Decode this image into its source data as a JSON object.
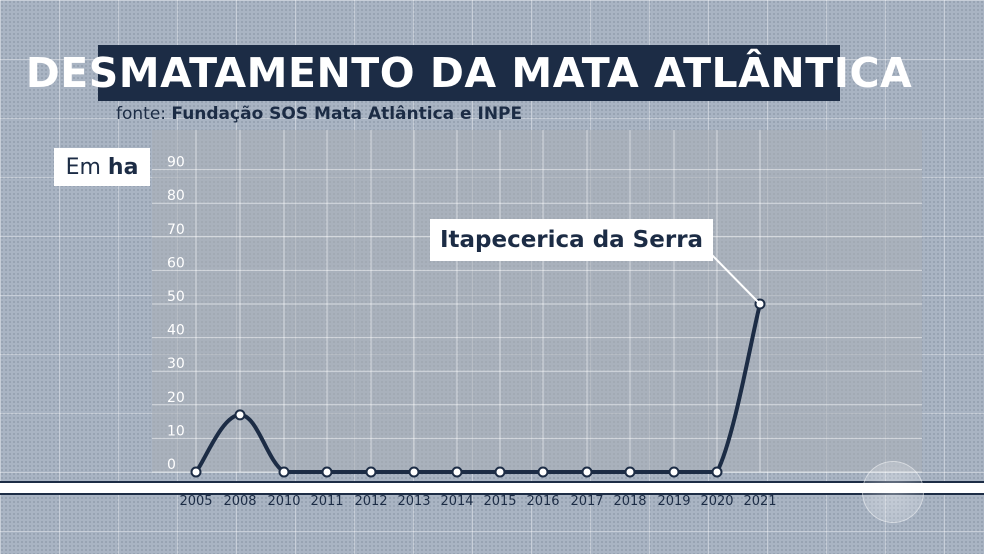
{
  "header": {
    "title": "DESMATAMENTO DA MATA ATLÂNTICA",
    "source_prefix": "fonte: ",
    "source_name": "Fundação SOS Mata Atlântica e INPE"
  },
  "unit": {
    "prefix": "Em",
    "unit": "ha"
  },
  "annotation": {
    "label": "Itapecerica da Serra",
    "x": "2021"
  },
  "colors": {
    "navy": "#1c2c45",
    "background": "#a9b4c3",
    "white": "#ffffff"
  },
  "chart_data": {
    "type": "line",
    "title": "DESMATAMENTO DA MATA ATLÂNTICA",
    "xlabel": "",
    "ylabel": "Em ha",
    "categories": [
      "2005",
      "2008",
      "2010",
      "2011",
      "2012",
      "2013",
      "2014",
      "2015",
      "2016",
      "2017",
      "2018",
      "2019",
      "2020",
      "2021"
    ],
    "series": [
      {
        "values": [
          0,
          17,
          0,
          0,
          0,
          0,
          0,
          0,
          0,
          0,
          0,
          0,
          0,
          50
        ]
      }
    ],
    "yticks": [
      "0",
      "10",
      "20",
      "30",
      "40",
      "50",
      "60",
      "70",
      "80",
      "90"
    ],
    "ylim": [
      0,
      90
    ],
    "grid": true,
    "legend": "none"
  }
}
